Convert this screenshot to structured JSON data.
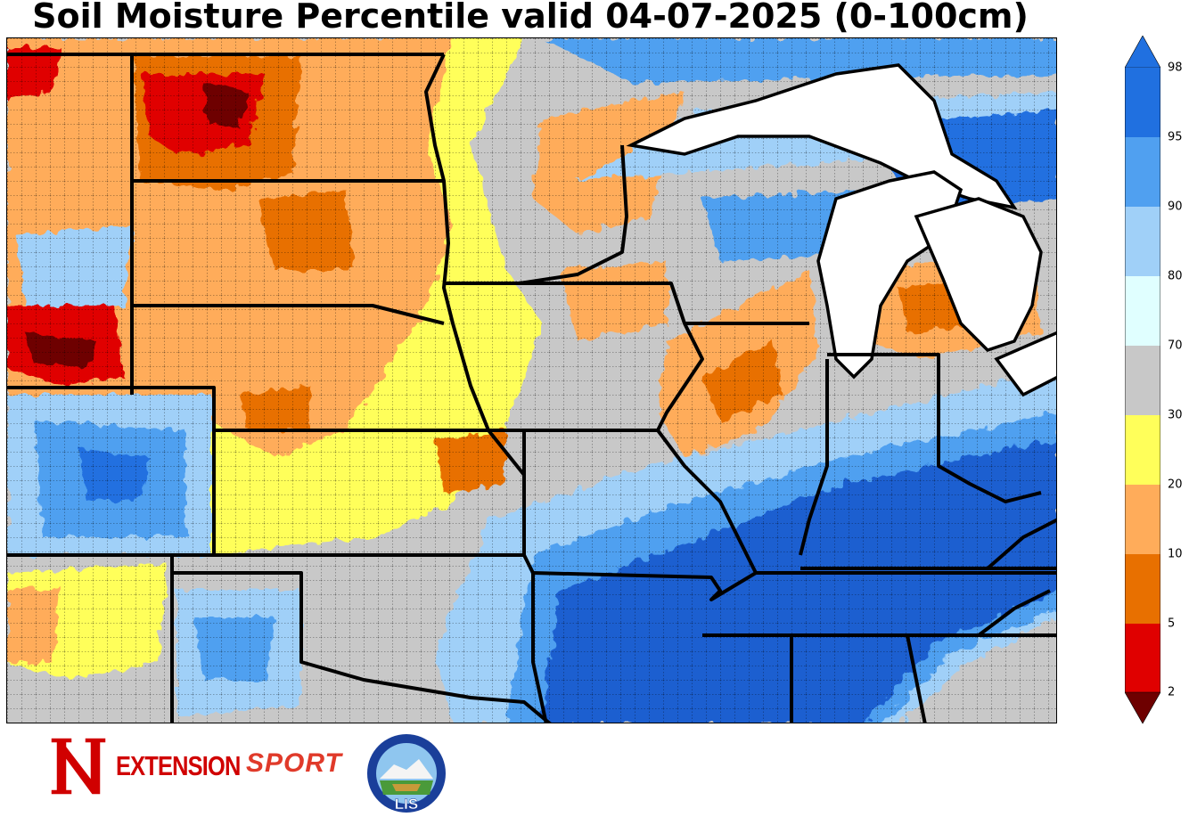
{
  "title": "Soil Moisture Percentile valid 04-07-2025 (0-100cm)",
  "colorbar": {
    "ticks": [
      "2",
      "5",
      "10",
      "20",
      "30",
      "70",
      "80",
      "90",
      "95",
      "98"
    ],
    "colors": [
      "#6e0000",
      "#e00000",
      "#e87000",
      "#ffac5a",
      "#ffff5a",
      "#c8c8c8",
      "#e0ffff",
      "#a0d0f8",
      "#50a0f0",
      "#2070e0",
      "#1a5fd0"
    ],
    "extend": "both"
  },
  "map": {
    "region": "Central / Midwest United States",
    "variable": "soil-moisture-percentile",
    "layers": [
      "state-borders",
      "county-borders",
      "great-lakes",
      "coastline"
    ]
  },
  "logos": {
    "extension_text": "EXTENSION",
    "sport_text": "SPORT",
    "lis_text": "LIS"
  }
}
